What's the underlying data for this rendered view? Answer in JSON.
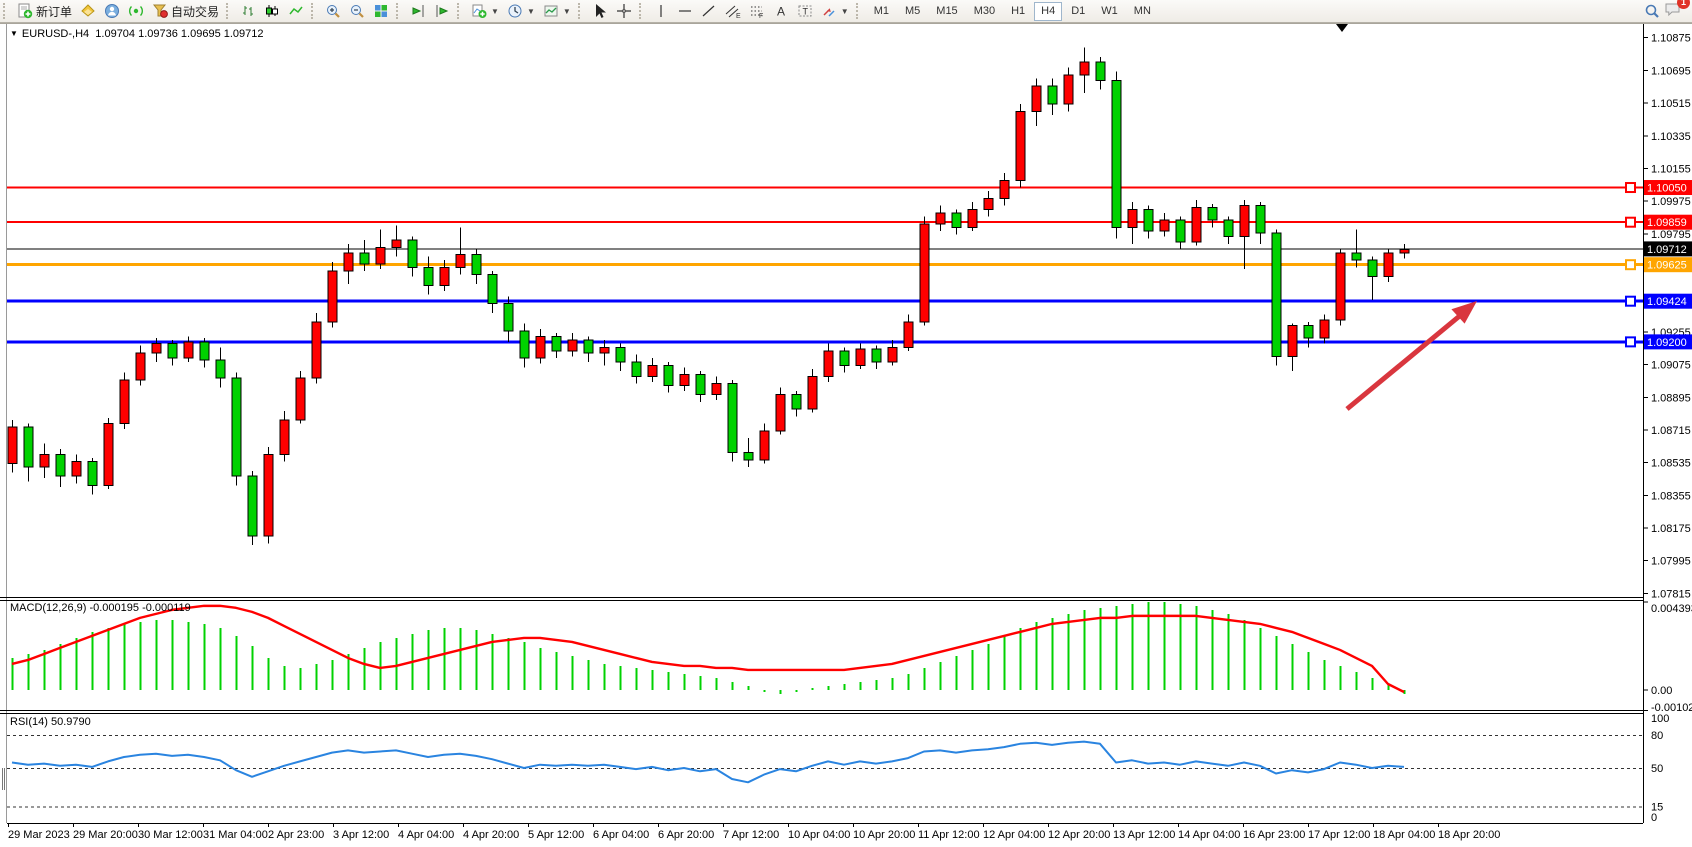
{
  "toolbar": {
    "new_order_label": "新订单",
    "autotrade_label": "自动交易",
    "timeframes": [
      "M1",
      "M5",
      "M15",
      "M30",
      "H1",
      "H4",
      "D1",
      "W1",
      "MN"
    ],
    "active_timeframe": "H4",
    "notification_count": "1"
  },
  "chart": {
    "title": "EURUSD-,H4",
    "quote_line": "1.09704 1.09736 1.09695 1.09712"
  },
  "indicators": {
    "macd_label": "MACD(12,26,9) -0.000195 -0.000119",
    "rsi_label": "RSI(14) 50.9790"
  },
  "price_axis": {
    "ticks": [
      "1.10875",
      "1.10695",
      "1.10515",
      "1.10335",
      "1.10155",
      "1.09975",
      "1.09795",
      "1.09255",
      "1.09075",
      "1.08895",
      "1.08715",
      "1.08535",
      "1.08355",
      "1.08175",
      "1.07995",
      "1.07815"
    ]
  },
  "macd_axis": {
    "ticks": [
      {
        "v": 0.004393,
        "label": "0.004393"
      },
      {
        "v": 0,
        "label": "0.00"
      },
      {
        "v": -0.001021,
        "label": "-0.001021"
      }
    ]
  },
  "rsi_axis": {
    "ticks": [
      {
        "v": 100,
        "label": "100"
      },
      {
        "v": 80,
        "label": "80"
      },
      {
        "v": 50,
        "label": "50"
      },
      {
        "v": 15,
        "label": "15"
      },
      {
        "v": 0,
        "label": "0"
      }
    ],
    "levels": [
      80,
      50,
      15
    ]
  },
  "time_axis": {
    "labels": [
      "29 Mar 2023",
      "29 Mar 20:00",
      "30 Mar 12:00",
      "31 Mar 04:00",
      "2 Apr 23:00",
      "3 Apr 12:00",
      "4 Apr 04:00",
      "4 Apr 20:00",
      "5 Apr 12:00",
      "6 Apr 04:00",
      "6 Apr 20:00",
      "7 Apr 12:00",
      "10 Apr 04:00",
      "10 Apr 20:00",
      "11 Apr 12:00",
      "12 Apr 04:00",
      "12 Apr 20:00",
      "13 Apr 12:00",
      "14 Apr 04:00",
      "16 Apr 23:00",
      "17 Apr 12:00",
      "18 Apr 04:00",
      "18 Apr 20:00"
    ]
  },
  "chart_data": {
    "type": "candlestick",
    "symbol": "EURUSD-",
    "timeframe": "H4",
    "last_quote": {
      "open": 1.09704,
      "high": 1.09736,
      "low": 1.09695,
      "close": 1.09712
    },
    "up_color": "#ff0000",
    "down_color": "#00d200",
    "ylim": [
      1.07795,
      1.10945
    ],
    "candles": [
      [
        1.0853,
        1.0877,
        1.0848,
        1.0873
      ],
      [
        1.0873,
        1.0875,
        1.0843,
        1.0851
      ],
      [
        1.0851,
        1.0864,
        1.0845,
        1.0858
      ],
      [
        1.0858,
        1.0861,
        1.084,
        1.0846
      ],
      [
        1.0846,
        1.0858,
        1.0842,
        1.0854
      ],
      [
        1.0854,
        1.0856,
        1.0836,
        1.0841
      ],
      [
        1.0841,
        1.0878,
        1.0839,
        1.0875
      ],
      [
        1.0875,
        1.0903,
        1.0872,
        1.0899
      ],
      [
        1.0899,
        1.0918,
        1.0896,
        1.0914
      ],
      [
        1.0914,
        1.0922,
        1.0909,
        1.0919
      ],
      [
        1.0919,
        1.0921,
        1.0907,
        1.0911
      ],
      [
        1.0911,
        1.0923,
        1.0909,
        1.092
      ],
      [
        1.092,
        1.0922,
        1.0906,
        1.091
      ],
      [
        1.091,
        1.0917,
        1.0895,
        1.09
      ],
      [
        1.09,
        1.0903,
        1.0841,
        1.0846
      ],
      [
        1.0846,
        1.0849,
        1.0808,
        1.0813
      ],
      [
        1.0813,
        1.0862,
        1.0809,
        1.0858
      ],
      [
        1.0858,
        1.0882,
        1.0854,
        1.0877
      ],
      [
        1.0877,
        1.0904,
        1.0875,
        1.09
      ],
      [
        1.09,
        1.0936,
        1.0897,
        1.0931
      ],
      [
        1.0931,
        1.0964,
        1.0928,
        1.0959
      ],
      [
        1.0959,
        1.0974,
        1.0952,
        1.0969
      ],
      [
        1.0969,
        1.0976,
        1.0959,
        1.0963
      ],
      [
        1.0963,
        1.0982,
        1.096,
        1.0972
      ],
      [
        1.0972,
        1.0984,
        1.0967,
        1.0976
      ],
      [
        1.0976,
        1.0978,
        1.0956,
        1.0961
      ],
      [
        1.0961,
        1.0967,
        1.0946,
        1.0951
      ],
      [
        1.0951,
        1.0965,
        1.0948,
        1.0961
      ],
      [
        1.0961,
        1.0983,
        1.0957,
        1.0968
      ],
      [
        1.0968,
        1.0971,
        1.0952,
        1.0957
      ],
      [
        1.0957,
        1.0959,
        1.0936,
        1.0941
      ],
      [
        1.0941,
        1.0945,
        1.092,
        1.0926
      ],
      [
        1.0926,
        1.093,
        1.0906,
        1.0911
      ],
      [
        1.0911,
        1.0927,
        1.0908,
        1.0923
      ],
      [
        1.0923,
        1.0925,
        1.0911,
        1.0915
      ],
      [
        1.0915,
        1.0925,
        1.0912,
        1.0921
      ],
      [
        1.0921,
        1.0923,
        1.0909,
        1.0914
      ],
      [
        1.0914,
        1.0921,
        1.0907,
        1.0917
      ],
      [
        1.0917,
        1.0919,
        1.0904,
        1.0909
      ],
      [
        1.0909,
        1.0913,
        1.0897,
        1.0901
      ],
      [
        1.0901,
        1.0911,
        1.0898,
        1.0907
      ],
      [
        1.0907,
        1.0909,
        1.0892,
        1.0896
      ],
      [
        1.0896,
        1.0906,
        1.0893,
        1.0902
      ],
      [
        1.0902,
        1.0904,
        1.0887,
        1.0891
      ],
      [
        1.0891,
        1.0901,
        1.0888,
        1.0897
      ],
      [
        1.0897,
        1.0899,
        1.0854,
        1.0859
      ],
      [
        1.0859,
        1.0867,
        1.0851,
        1.0855
      ],
      [
        1.0855,
        1.0875,
        1.0853,
        1.0871
      ],
      [
        1.0871,
        1.0895,
        1.0869,
        1.0891
      ],
      [
        1.0891,
        1.0893,
        1.0879,
        1.0883
      ],
      [
        1.0883,
        1.0905,
        1.0881,
        1.0901
      ],
      [
        1.0901,
        1.0919,
        1.0898,
        1.0915
      ],
      [
        1.0915,
        1.0917,
        1.0903,
        1.0907
      ],
      [
        1.0907,
        1.0919,
        1.0905,
        1.0916
      ],
      [
        1.0916,
        1.0918,
        1.0905,
        1.0909
      ],
      [
        1.0909,
        1.0921,
        1.0907,
        1.0917
      ],
      [
        1.0917,
        1.0935,
        1.0915,
        1.0931
      ],
      [
        1.0931,
        1.0989,
        1.0929,
        1.0985
      ],
      [
        1.0985,
        1.0995,
        1.0981,
        1.0991
      ],
      [
        1.0991,
        1.0993,
        1.0979,
        1.0983
      ],
      [
        1.0983,
        1.0997,
        1.0981,
        1.0993
      ],
      [
        1.0993,
        1.1003,
        1.0989,
        1.0999
      ],
      [
        1.0999,
        1.1013,
        1.0995,
        1.1009
      ],
      [
        1.1009,
        1.1051,
        1.1005,
        1.1047
      ],
      [
        1.1047,
        1.1065,
        1.1039,
        1.1061
      ],
      [
        1.1061,
        1.1065,
        1.1045,
        1.1051
      ],
      [
        1.1051,
        1.1071,
        1.1047,
        1.1067
      ],
      [
        1.1067,
        1.1082,
        1.1057,
        1.1074
      ],
      [
        1.1074,
        1.1077,
        1.1059,
        1.1064
      ],
      [
        1.1064,
        1.1069,
        1.0977,
        1.0983
      ],
      [
        1.0983,
        1.0997,
        1.0974,
        1.0993
      ],
      [
        1.0993,
        1.0995,
        1.0977,
        1.0981
      ],
      [
        1.0981,
        1.0991,
        1.0978,
        1.0987
      ],
      [
        1.0987,
        1.0989,
        1.0971,
        1.0975
      ],
      [
        1.0975,
        1.0998,
        1.0973,
        1.0994
      ],
      [
        1.0994,
        1.0996,
        1.0983,
        1.0987
      ],
      [
        1.0987,
        1.0989,
        1.0974,
        1.0978
      ],
      [
        1.0978,
        1.0998,
        1.096,
        1.0995
      ],
      [
        1.0995,
        1.0997,
        1.0974,
        1.098
      ],
      [
        1.098,
        1.0982,
        1.0907,
        1.0912
      ],
      [
        1.0912,
        1.093,
        1.0904,
        1.0929
      ],
      [
        1.0929,
        1.0931,
        1.0917,
        1.0922
      ],
      [
        1.0922,
        1.0935,
        1.0919,
        1.0932
      ],
      [
        1.0932,
        1.0971,
        1.0929,
        1.0969
      ],
      [
        1.0969,
        1.0982,
        1.0961,
        1.0965
      ],
      [
        1.0965,
        1.0967,
        1.0943,
        1.0956
      ],
      [
        1.0956,
        1.0971,
        1.0953,
        1.0969
      ],
      [
        1.0969,
        1.0974,
        1.0966,
        1.0971
      ]
    ],
    "hlines": [
      {
        "price": 1.1005,
        "color": "#ff0000",
        "thickness": 2,
        "label": "1.10050"
      },
      {
        "price": 1.09859,
        "color": "#ff0000",
        "thickness": 2,
        "label": "1.09859"
      },
      {
        "price": 1.09625,
        "color": "#ffa500",
        "thickness": 3,
        "label": "1.09625"
      },
      {
        "price": 1.09424,
        "color": "#0000ff",
        "thickness": 3,
        "label": "1.09424"
      },
      {
        "price": 1.092,
        "color": "#0000ff",
        "thickness": 3,
        "label": "1.09200"
      }
    ],
    "price_line": {
      "price": 1.09712,
      "label": "1.09712",
      "color": "#000000"
    },
    "arrow": {
      "color": "#d9363e"
    },
    "macd": {
      "ylim": [
        -0.001021,
        0.004393
      ],
      "histogram_color": "#00d200",
      "signal_color": "#ff0000",
      "histogram_x1e4": [
        16,
        18,
        20,
        23,
        26,
        29,
        31,
        33,
        34,
        35,
        35,
        34,
        33,
        31,
        27,
        22,
        16,
        12,
        11,
        13,
        15,
        18,
        21,
        24,
        26,
        28,
        30,
        31,
        31,
        30,
        28,
        26,
        24,
        21,
        19,
        17,
        15,
        13,
        12,
        11,
        10,
        9,
        8,
        7,
        6,
        4,
        2,
        -1,
        -2,
        -1,
        1,
        2,
        3,
        4,
        5,
        6,
        8,
        11,
        14,
        17,
        20,
        23,
        27,
        31,
        34,
        36,
        38,
        40,
        41,
        42,
        43,
        44,
        44,
        43,
        42,
        40,
        38,
        35,
        31,
        27,
        23,
        19,
        15,
        12,
        9,
        6,
        3,
        -2
      ],
      "signal_x1e4": [
        13,
        15,
        18,
        21,
        24,
        27,
        30,
        33,
        36,
        38,
        40,
        41,
        42,
        42,
        41,
        39,
        36,
        32,
        28,
        24,
        20,
        16,
        13,
        11,
        12,
        14,
        16,
        18,
        20,
        22,
        24,
        25,
        26,
        26,
        25,
        24,
        22,
        20,
        18,
        16,
        14,
        13,
        12,
        12,
        11,
        11,
        10,
        10,
        10,
        10,
        10,
        10,
        10,
        11,
        12,
        13,
        15,
        17,
        19,
        21,
        23,
        25,
        27,
        29,
        31,
        33,
        34,
        35,
        36,
        36,
        37,
        37,
        37,
        37,
        37,
        36,
        35,
        34,
        33,
        31,
        29,
        26,
        23,
        20,
        16,
        12,
        3,
        -1
      ]
    },
    "rsi": {
      "ylim": [
        0,
        100
      ],
      "line_color": "#2a84e0",
      "current": 50.979,
      "values": [
        55,
        53,
        54,
        52,
        53,
        51,
        56,
        60,
        62,
        63,
        61,
        62,
        60,
        57,
        48,
        42,
        47,
        52,
        56,
        60,
        64,
        66,
        64,
        65,
        66,
        63,
        60,
        62,
        63,
        61,
        58,
        54,
        50,
        53,
        52,
        53,
        52,
        53,
        51,
        49,
        51,
        48,
        50,
        47,
        49,
        40,
        37,
        44,
        49,
        47,
        52,
        56,
        53,
        56,
        54,
        56,
        59,
        65,
        66,
        64,
        66,
        67,
        69,
        72,
        73,
        71,
        73,
        74,
        72,
        55,
        57,
        54,
        55,
        53,
        56,
        54,
        52,
        55,
        52,
        45,
        48,
        46,
        49,
        55,
        53,
        50,
        52,
        51
      ]
    }
  }
}
